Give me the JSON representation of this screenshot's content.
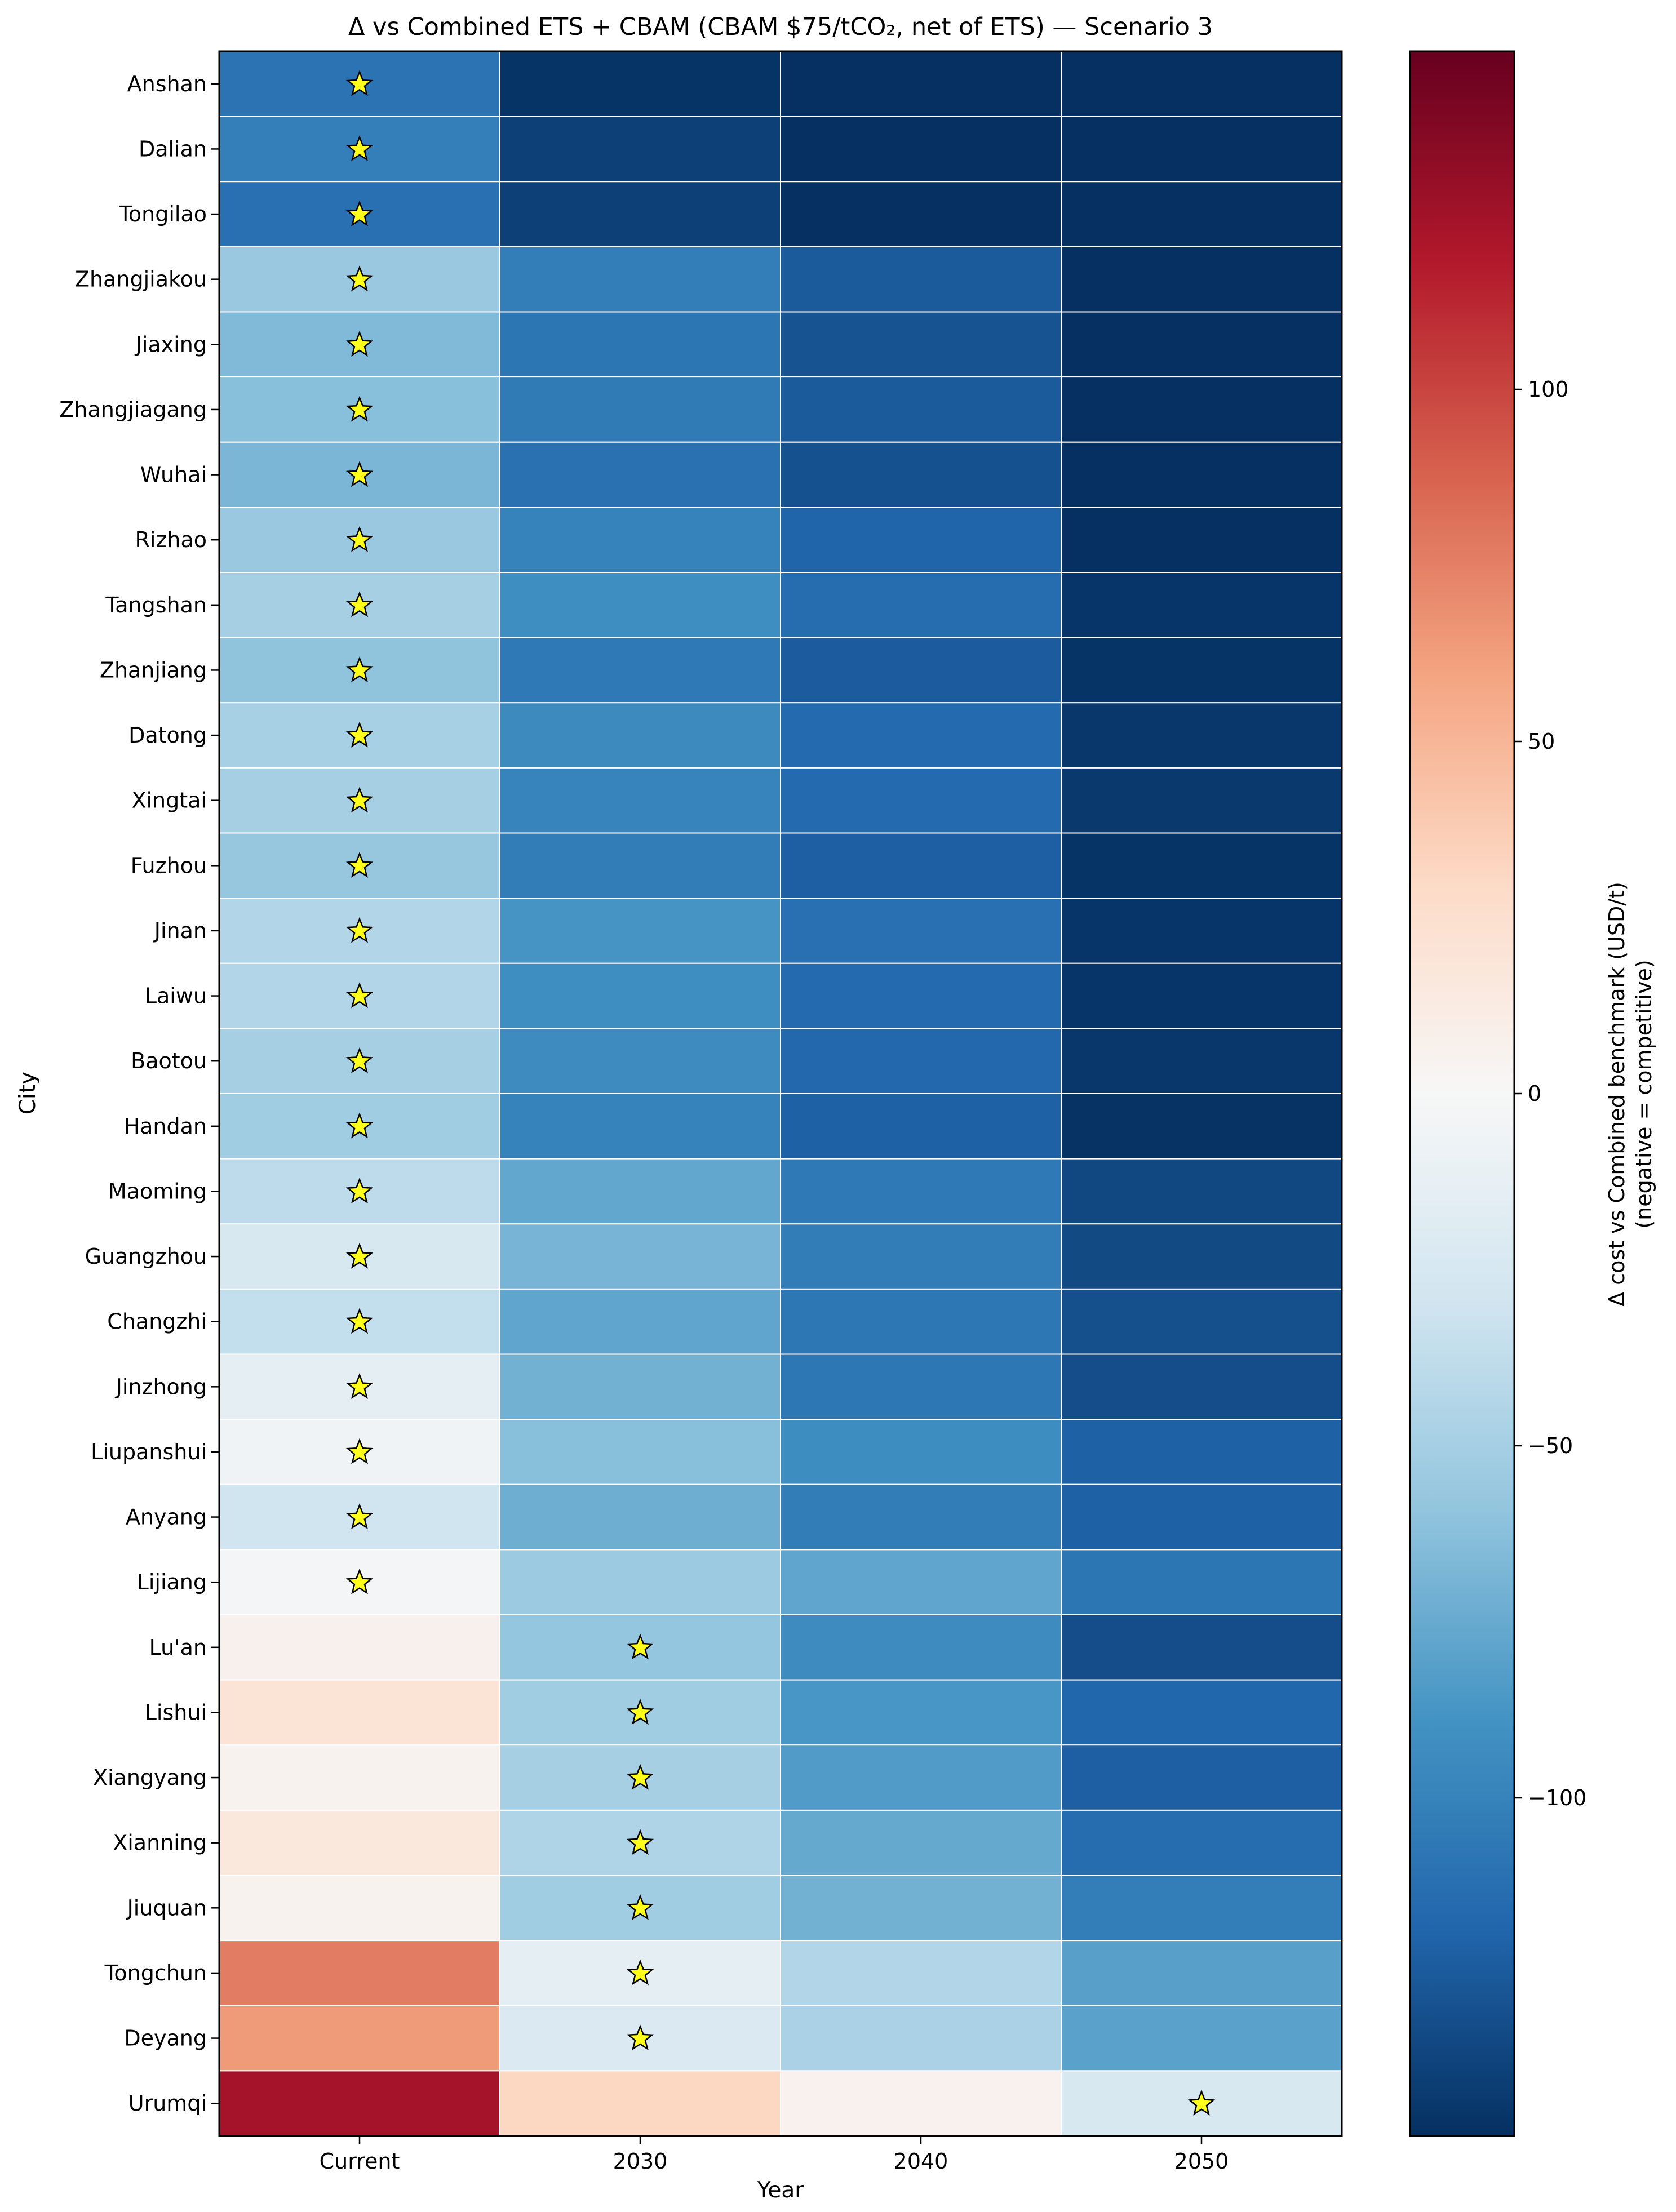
{
  "chart_data": {
    "type": "heatmap",
    "title": "Δ vs Combined ETS + CBAM (CBAM $75/tCO₂, net of ETS) — Scenario 3",
    "xlabel": "Year",
    "ylabel": "City",
    "x_categories": [
      "Current",
      "2030",
      "2040",
      "2050"
    ],
    "y_categories": [
      "Anshan",
      "Dalian",
      "Tongilao",
      "Zhangjiakou",
      "Jiaxing",
      "Zhangjiagang",
      "Wuhai",
      "Rizhao",
      "Tangshan",
      "Zhanjiang",
      "Datong",
      "Xingtai",
      "Fuzhou",
      "Jinan",
      "Laiwu",
      "Baotou",
      "Handan",
      "Maoming",
      "Guangzhou",
      "Changzhi",
      "Jinzhong",
      "Liupanshui",
      "Anyang",
      "Lijiang",
      "Lu'an",
      "Lishui",
      "Xiangyang",
      "Xianning",
      "Jiuquan",
      "Tongchun",
      "Deyang",
      "Urumqi"
    ],
    "values": [
      [
        -110,
        -146,
        -150,
        -150
      ],
      [
        -102,
        -139,
        -150,
        -150
      ],
      [
        -112,
        -139,
        -150,
        -150
      ],
      [
        -56,
        -103,
        -125,
        -150
      ],
      [
        -66,
        -108,
        -129,
        -150
      ],
      [
        -63,
        -105,
        -125,
        -150
      ],
      [
        -68,
        -111,
        -130,
        -149
      ],
      [
        -56,
        -100,
        -119,
        -148
      ],
      [
        -50,
        -92,
        -114,
        -145
      ],
      [
        -60,
        -106,
        -124,
        -146
      ],
      [
        -49,
        -95,
        -116,
        -144
      ],
      [
        -50,
        -99,
        -116,
        -143
      ],
      [
        -57,
        -104,
        -122,
        -146
      ],
      [
        -44,
        -88,
        -112,
        -145
      ],
      [
        -44,
        -92,
        -116,
        -145
      ],
      [
        -50,
        -94,
        -117,
        -144
      ],
      [
        -52,
        -100,
        -121,
        -147
      ],
      [
        -39,
        -77,
        -106,
        -135
      ],
      [
        -24,
        -69,
        -104,
        -134
      ],
      [
        -36,
        -78,
        -107,
        -131
      ],
      [
        -15,
        -71,
        -107,
        -132
      ],
      [
        -6,
        -63,
        -93,
        -121
      ],
      [
        -30,
        -73,
        -104,
        -121
      ],
      [
        -3,
        -55,
        -78,
        -108
      ],
      [
        7,
        -58,
        -94,
        -132
      ],
      [
        21,
        -52,
        -87,
        -118
      ],
      [
        5,
        -50,
        -84,
        -122
      ],
      [
        16,
        -45,
        -76,
        -114
      ],
      [
        5,
        -52,
        -71,
        -103
      ],
      [
        77,
        -15,
        -44,
        -81
      ],
      [
        64,
        -22,
        -48,
        -80
      ],
      [
        124,
        32,
        6,
        -24
      ]
    ],
    "star_column": [
      0,
      0,
      0,
      0,
      0,
      0,
      0,
      0,
      0,
      0,
      0,
      0,
      0,
      0,
      0,
      0,
      0,
      0,
      0,
      0,
      0,
      0,
      0,
      0,
      1,
      1,
      1,
      1,
      1,
      1,
      1,
      3
    ],
    "colormap": "RdBu_r",
    "vmin": -148,
    "vmax": 148,
    "colorbar": {
      "label_line1": "Δ cost vs Combined benchmark (USD/t)",
      "label_line2": "(negative = competitive)",
      "ticks": [
        100,
        50,
        0,
        -50,
        -100
      ],
      "tick_labels": [
        "100",
        "50",
        "0",
        "−50",
        "−100"
      ]
    },
    "grid": "white cell borders",
    "marker": {
      "shape": "star",
      "color": "#ffff1a",
      "edge": "#000000"
    }
  }
}
